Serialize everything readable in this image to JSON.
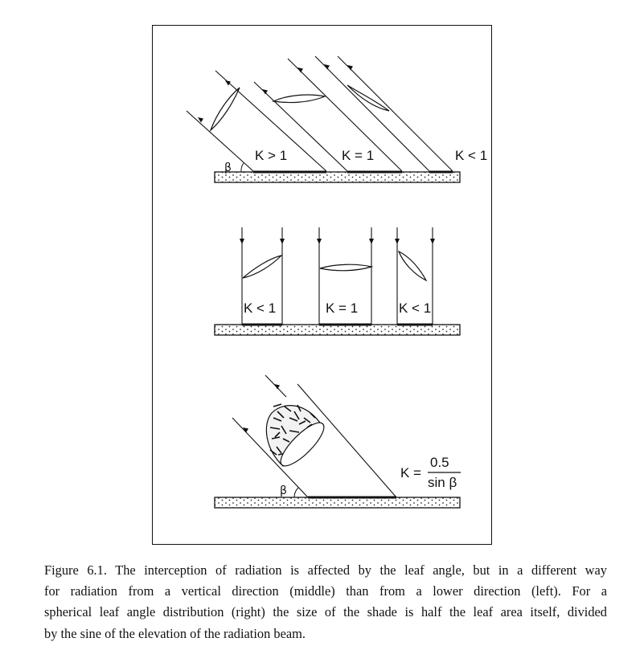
{
  "panel_top": {
    "labels": [
      "K > 1",
      "K = 1",
      "K < 1"
    ],
    "angle_symbol": "β"
  },
  "panel_middle": {
    "labels": [
      "K < 1",
      "K = 1",
      "K < 1"
    ]
  },
  "panel_bottom": {
    "angle_symbol": "β",
    "formula": {
      "lhs": "K =",
      "numerator": "0.5",
      "denominator": "sin β"
    }
  },
  "caption": {
    "lines": [
      "Figure 6.1. The interception of radiation is affected by the leaf angle, but in a different way",
      "for radiation from a vertical direction (middle) than from a lower direction (left). For a",
      "spherical leaf angle distribution (right) the size of the shade is half the leaf area itself, divided",
      "by the sine of the elevation of the radiation beam."
    ]
  }
}
